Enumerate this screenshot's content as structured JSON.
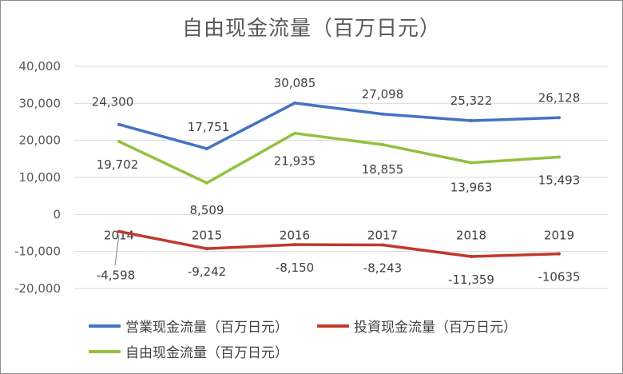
{
  "chart_data": {
    "type": "line",
    "title": "自由现金流量（百万日元）",
    "categories": [
      "2014",
      "2015",
      "2016",
      "2017",
      "2018",
      "2019"
    ],
    "ylim": [
      -20000,
      40000
    ],
    "yticks": [
      -20000,
      -10000,
      0,
      10000,
      20000,
      30000,
      40000
    ],
    "ytick_labels": [
      "-20,000",
      "-10,000",
      "0",
      "10,000",
      "20,000",
      "30,000",
      "40,000"
    ],
    "grid": true,
    "legend_position": "bottom",
    "series": [
      {
        "name": "営業现金流量（百万日元）",
        "color": "#4472c4",
        "values": [
          24300,
          17751,
          30085,
          27098,
          25322,
          26128
        ],
        "labels": [
          "24,300",
          "17,751",
          "30,085",
          "27,098",
          "25,322",
          "26,128"
        ]
      },
      {
        "name": "投資现金流量（百万日元）",
        "color": "#c0392b",
        "values": [
          -4598,
          -9242,
          -8150,
          -8243,
          -11359,
          -10635
        ],
        "labels": [
          "-4,598",
          "-9,242",
          "-8,150",
          "-8,243",
          "-11,359",
          "-10635"
        ]
      },
      {
        "name": "自由现金流量（百万日元）",
        "color": "#92c13e",
        "values": [
          19702,
          8509,
          21935,
          18855,
          13963,
          15493
        ],
        "labels": [
          "19,702",
          "8,509",
          "21,935",
          "18,855",
          "13,963",
          "15,493"
        ]
      }
    ]
  }
}
